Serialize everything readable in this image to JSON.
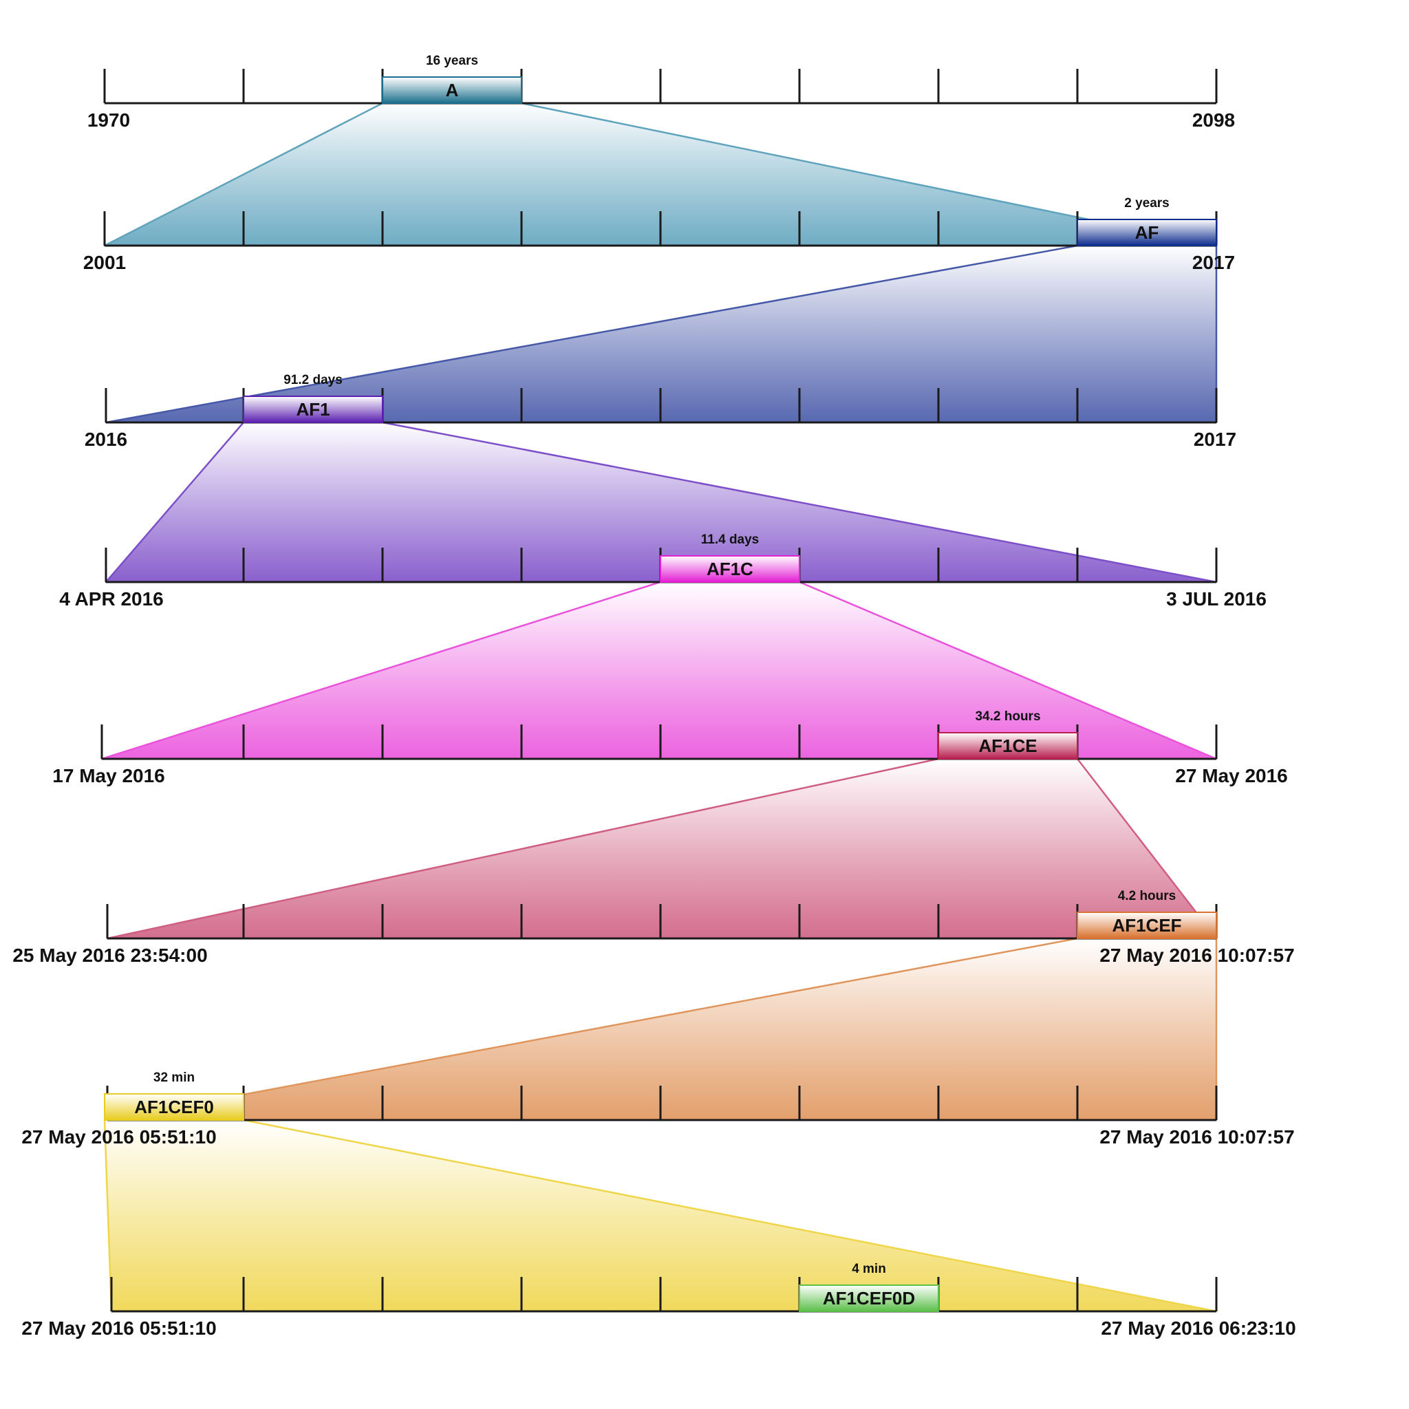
{
  "colors": {
    "zoom_1": "#5fa3bd",
    "zoom_2": "#4658a8",
    "zoom_3": "#7d4fc8",
    "zoom_4": "#ea52dc",
    "zoom_5": "#cf5e82",
    "zoom_6": "#e0955c",
    "zoom_7": "#efd54a",
    "box_A": "#1b6f8c",
    "box_AF": "#0d2c8c",
    "box_AF1": "#5b1faf",
    "box_AF1C": "#e31fd4",
    "box_AF1CE": "#b81f4f",
    "box_AF1CEF": "#d8722f",
    "box_AF1CEF0": "#e8cc1f",
    "box_AF1CEF0D": "#5bbf4a"
  },
  "timelines": [
    {
      "start_label": "1970",
      "end_label": "2098",
      "segment": {
        "label": "A",
        "duration": "16 years",
        "index": 2
      }
    },
    {
      "start_label": "2001",
      "end_label": "2017",
      "segment": {
        "label": "AF",
        "duration": "2 years",
        "index": 7
      }
    },
    {
      "start_label": "2016",
      "end_label": "2017",
      "segment": {
        "label": "AF1",
        "duration": "91.2 days",
        "index": 1
      }
    },
    {
      "start_label": "4 APR 2016",
      "end_label": "3 JUL 2016",
      "segment": {
        "label": "AF1C",
        "duration": "11.4 days",
        "index": 4
      }
    },
    {
      "start_label": "17 May 2016",
      "end_label": "27 May 2016",
      "segment": {
        "label": "AF1CE",
        "duration": "34.2 hours",
        "index": 6
      }
    },
    {
      "start_label": "25 May 2016 23:54:00",
      "end_label": "27 May 2016 10:07:57",
      "segment": {
        "label": "AF1CEF",
        "duration": "4.2 hours",
        "index": 7
      }
    },
    {
      "start_label": "27 May 2016 05:51:10",
      "end_label": "27 May 2016 10:07:57",
      "segment": {
        "label": "AF1CEF0",
        "duration": "32 min",
        "index": 0
      }
    },
    {
      "start_label": "27 May 2016 05:51:10",
      "end_label": "27 May 2016 06:23:10",
      "segment": {
        "label": "AF1CEF0D",
        "duration": "4 min",
        "index": 5
      }
    }
  ]
}
